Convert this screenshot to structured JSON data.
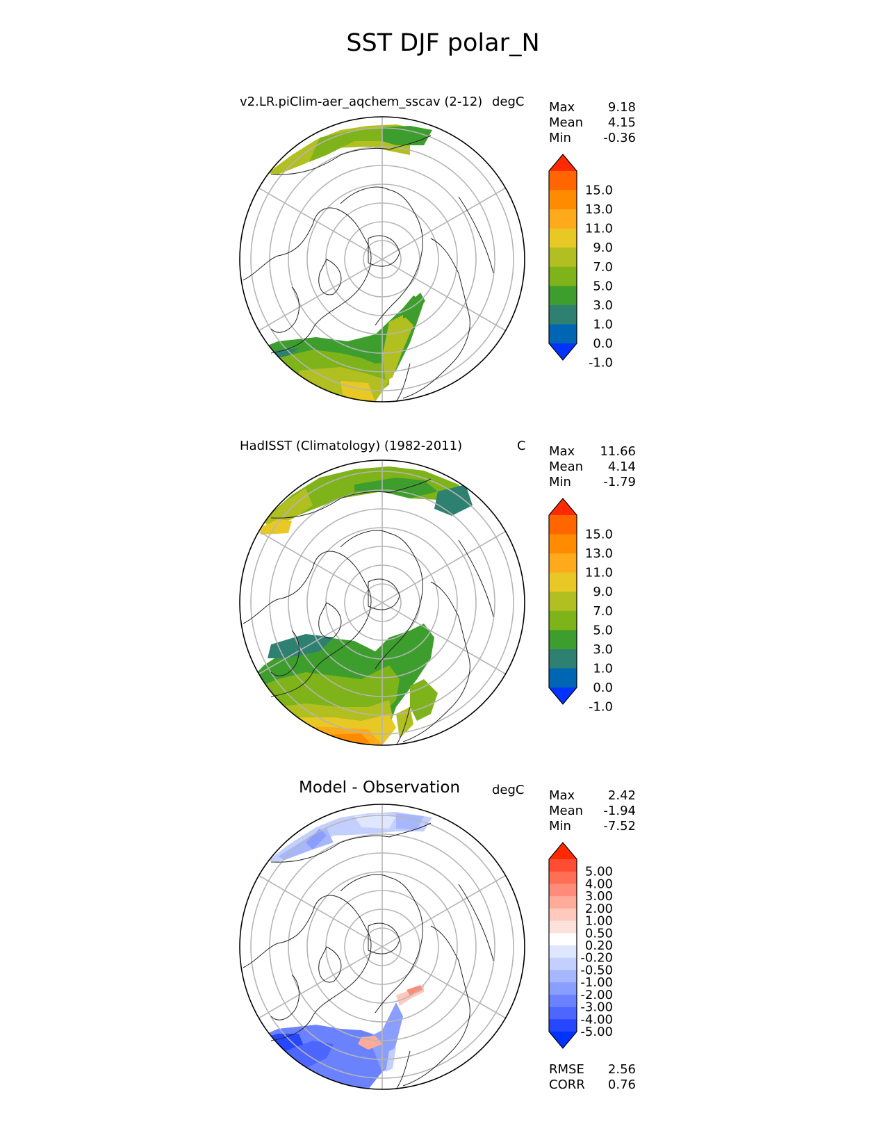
{
  "figure": {
    "title": "SST DJF polar_N"
  },
  "panels": [
    {
      "id": "model",
      "title_left": "v2.LR.piClim-aer_aqchem_sscav (2-12)",
      "title_right": "degC",
      "stats": [
        {
          "label": "Max",
          "value": "9.18"
        },
        {
          "label": "Mean",
          "value": "4.15"
        },
        {
          "label": "Min",
          "value": "-0.36"
        }
      ],
      "colorbar": {
        "labels": [
          "15.0",
          "13.0",
          "11.0",
          "9.0",
          "7.0",
          "5.0",
          "3.0",
          "1.0",
          "0.0",
          "-1.0"
        ],
        "colors": [
          "#ff2a00",
          "#ff6600",
          "#ff8c00",
          "#ffaa1a",
          "#e8c825",
          "#b2bf20",
          "#7fb31a",
          "#3d9e2d",
          "#2e8070",
          "#0066b3",
          "#0033ff"
        ]
      }
    },
    {
      "id": "obs",
      "title_left": "HadISST (Climatology) (1982-2011)",
      "title_right": "C",
      "stats": [
        {
          "label": "Max",
          "value": "11.66"
        },
        {
          "label": "Mean",
          "value": "4.14"
        },
        {
          "label": "Min",
          "value": "-1.79"
        }
      ],
      "colorbar": {
        "labels": [
          "15.0",
          "13.0",
          "11.0",
          "9.0",
          "7.0",
          "5.0",
          "3.0",
          "1.0",
          "0.0",
          "-1.0"
        ],
        "colors": [
          "#ff2a00",
          "#ff6600",
          "#ff8c00",
          "#ffaa1a",
          "#e8c825",
          "#b2bf20",
          "#7fb31a",
          "#3d9e2d",
          "#2e8070",
          "#0066b3",
          "#0033ff"
        ]
      }
    },
    {
      "id": "diff",
      "title_left": "Model - Observation",
      "title_right": "degC",
      "stats": [
        {
          "label": "Max",
          "value": "2.42"
        },
        {
          "label": "Mean",
          "value": "-1.94"
        },
        {
          "label": "Min",
          "value": "-7.52"
        }
      ],
      "bottom_stats": [
        {
          "label": "RMSE",
          "value": "2.56"
        },
        {
          "label": "CORR",
          "value": "0.76"
        }
      ],
      "colorbar": {
        "labels": [
          "5.00",
          "4.00",
          "3.00",
          "2.00",
          "1.00",
          "0.50",
          "0.20",
          "-0.20",
          "-0.50",
          "-1.00",
          "-2.00",
          "-3.00",
          "-4.00",
          "-5.00"
        ],
        "colors": [
          "#ff2a00",
          "#ff4d33",
          "#ff6f55",
          "#ff8c78",
          "#ffab9a",
          "#ffc9bd",
          "#fde2dc",
          "#ffffff",
          "#dfe6ff",
          "#c3cfff",
          "#a6b7ff",
          "#8a9eff",
          "#6b82ff",
          "#4d66ff",
          "#2447ff",
          "#0033ff"
        ]
      }
    }
  ]
}
